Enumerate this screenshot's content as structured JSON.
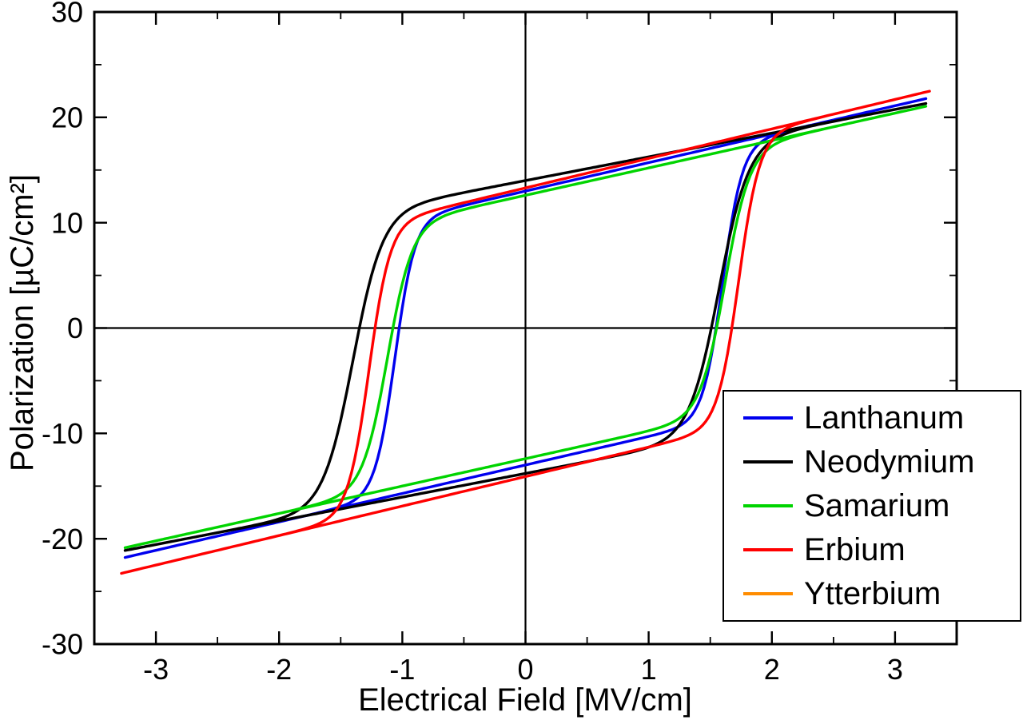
{
  "figure": {
    "background": "#ffffff",
    "frame_color": "#000000",
    "zero_line_color": "#000000"
  },
  "chart_data": {
    "type": "line",
    "subtype": "ferroelectric-hysteresis-loops",
    "title": "",
    "xlabel": "Electrical Field [MV/cm]",
    "ylabel": "Polarization [µC/cm²]",
    "xlim": [
      -3.5,
      3.5
    ],
    "ylim": [
      -30,
      30
    ],
    "x_ticks": [
      -3,
      -2,
      -1,
      0,
      1,
      2,
      3
    ],
    "y_ticks": [
      -30,
      -20,
      -10,
      0,
      10,
      20,
      30
    ],
    "x_minor_step": 0.5,
    "y_minor_step": 5,
    "grid": false,
    "zero_lines": true,
    "legend": {
      "position": "lower-right",
      "border": true,
      "background": "#ffffff"
    },
    "series": [
      {
        "name": "Lanthanum",
        "color": "#0000ee",
        "visible": true,
        "model": {
          "e_max": 3.25,
          "p0": 13.0,
          "slope": 2.7,
          "width": 0.16,
          "ec_neg": -1.06,
          "ec_pos": 1.6,
          "offset": 0
        },
        "readings": {
          "coercive_field_neg_MV_cm": -1.05,
          "coercive_field_pos_MV_cm": 1.6,
          "remanent_polarization_pos_uC_cm2": 13.0,
          "remanent_polarization_neg_uC_cm2": -13.0,
          "max_polarization_uC_cm2": 22.0,
          "min_polarization_uC_cm2": -21.8
        }
      },
      {
        "name": "Neodymium",
        "color": "#000000",
        "visible": true,
        "model": {
          "e_max": 3.25,
          "p0": 13.9,
          "slope": 2.25,
          "width": 0.24,
          "ec_neg": -1.4,
          "ec_pos": 1.57,
          "offset": 0.1
        },
        "readings": {
          "coercive_field_neg_MV_cm": -1.38,
          "coercive_field_pos_MV_cm": 1.57,
          "remanent_polarization_pos_uC_cm2": 14.0,
          "remanent_polarization_neg_uC_cm2": -13.8,
          "max_polarization_uC_cm2": 21.3,
          "min_polarization_uC_cm2": -21.1
        }
      },
      {
        "name": "Samarium",
        "color": "#00d400",
        "visible": true,
        "model": {
          "e_max": 3.25,
          "p0": 12.5,
          "slope": 2.6,
          "width": 0.2,
          "ec_neg": -1.12,
          "ec_pos": 1.62,
          "offset": 0.1
        },
        "readings": {
          "coercive_field_neg_MV_cm": -1.1,
          "coercive_field_pos_MV_cm": 1.62,
          "remanent_polarization_pos_uC_cm2": 12.6,
          "remanent_polarization_neg_uC_cm2": -12.4,
          "max_polarization_uC_cm2": 21.0,
          "min_polarization_uC_cm2": -20.9
        }
      },
      {
        "name": "Erbium",
        "color": "#ff0000",
        "visible": true,
        "model": {
          "e_max": 3.28,
          "p0": 13.7,
          "slope": 2.8,
          "width": 0.17,
          "ec_neg": -1.27,
          "ec_pos": 1.73,
          "offset": -0.4
        },
        "readings": {
          "coercive_field_neg_MV_cm": -1.25,
          "coercive_field_pos_MV_cm": 1.72,
          "remanent_polarization_pos_uC_cm2": 13.3,
          "remanent_polarization_neg_uC_cm2": -14.1,
          "max_polarization_uC_cm2": 23.0,
          "min_polarization_uC_cm2": -22.9
        }
      },
      {
        "name": "Ytterbium",
        "color": "#ff8c00",
        "visible": false,
        "model": null,
        "readings": null,
        "note": "legend entry only; curve not visible in plot"
      }
    ]
  }
}
